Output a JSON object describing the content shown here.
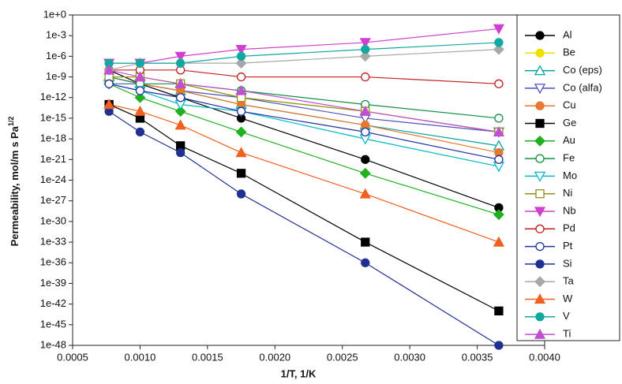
{
  "chart_data": {
    "type": "line",
    "y_label": "Permeability, mol/m s Pa",
    "y_label_sup": "1/2",
    "x_label": "1/T, 1/K",
    "log_y": true,
    "xlim": [
      0.0005,
      0.004
    ],
    "xticks": [
      0.0005,
      {
        "value": 0.001,
        "label": "0.0010"
      },
      0.0015,
      {
        "value": 0.002,
        "label": "0.0020"
      },
      0.0025,
      {
        "value": 0.003,
        "label": "0.0030"
      },
      0.0035,
      {
        "value": 0.004,
        "label": "0.0040"
      }
    ],
    "ylim": [
      1e-48,
      1
    ],
    "yticks": [
      {
        "value": 1,
        "label": "1e+0"
      },
      {
        "value": 0.001,
        "label": "1e-3"
      },
      {
        "value": 1e-06,
        "label": "1e-6"
      },
      {
        "value": 1e-09,
        "label": "1e-9"
      },
      {
        "value": 1e-12,
        "label": "1e-12"
      },
      {
        "value": 1e-15,
        "label": "1e-15"
      },
      {
        "value": 1e-18,
        "label": "1e-18"
      },
      {
        "value": 1e-21,
        "label": "1e-21"
      },
      {
        "value": 1e-24,
        "label": "1e-24"
      },
      {
        "value": 1e-27,
        "label": "1e-27"
      },
      {
        "value": 1e-30,
        "label": "1e-30"
      },
      {
        "value": 1e-33,
        "label": "1e-33"
      },
      {
        "value": 1e-36,
        "label": "1e-36"
      },
      {
        "value": 1e-39,
        "label": "1e-39"
      },
      {
        "value": 1e-42,
        "label": "1e-42"
      },
      {
        "value": 1e-45,
        "label": "1e-45"
      },
      {
        "value": 1e-48,
        "label": "1e-48"
      }
    ],
    "x": [
      0.00077,
      0.001,
      0.0013,
      0.00175,
      0.00267,
      0.00366
    ],
    "legend": "right",
    "series": [
      {
        "name": "Al",
        "color": "#000000",
        "marker": "circle",
        "filled": true,
        "values": [
          1e-08,
          1e-10,
          1e-12,
          1e-15,
          1e-21,
          1e-28
        ]
      },
      {
        "name": "Be",
        "color": "#f0e000",
        "marker": "circle",
        "filled": true,
        "values": [
          1e-09,
          1e-09,
          1e-10,
          1e-12,
          1e-14,
          1e-17
        ]
      },
      {
        "name": "Co (eps)",
        "color": "#00a0a0",
        "marker": "triangle",
        "filled": false,
        "values": [
          1e-09,
          1e-10,
          1e-11,
          1e-13,
          1e-16,
          1e-19
        ]
      },
      {
        "name": "Co (alfa)",
        "color": "#5050c0",
        "marker": "triangle-down",
        "filled": false,
        "values": [
          1e-10,
          1e-10,
          1e-11,
          1e-12,
          1e-15,
          1e-17
        ]
      },
      {
        "name": "Cu",
        "color": "#e87830",
        "marker": "circle",
        "filled": true,
        "values": [
          1e-09,
          1e-10,
          1e-11,
          1e-13,
          1e-16,
          1e-20
        ]
      },
      {
        "name": "Ge",
        "color": "#000000",
        "marker": "square",
        "filled": true,
        "values": [
          1e-13,
          1e-15,
          1e-19,
          1e-23,
          1e-33,
          1e-43
        ]
      },
      {
        "name": "Au",
        "color": "#20b020",
        "marker": "diamond",
        "filled": true,
        "values": [
          1e-10,
          1e-12,
          1e-14,
          1e-17,
          1e-23,
          1e-29
        ]
      },
      {
        "name": "Fe",
        "color": "#109040",
        "marker": "circle-dot",
        "filled": false,
        "values": [
          1e-09,
          1e-10,
          1e-10,
          1e-11,
          1e-13,
          1e-15
        ]
      },
      {
        "name": "Mo",
        "color": "#00b8c8",
        "marker": "triangle-down",
        "filled": false,
        "values": [
          1e-10,
          1e-11,
          1e-13,
          1e-14,
          1e-18,
          1e-22
        ]
      },
      {
        "name": "Ni",
        "color": "#909010",
        "marker": "square",
        "filled": false,
        "values": [
          1e-09,
          1e-09,
          1e-10,
          1e-12,
          1e-14,
          1e-17
        ]
      },
      {
        "name": "Nb",
        "color": "#d040d0",
        "marker": "triangle-down",
        "filled": true,
        "values": [
          1e-07,
          1e-07,
          1e-06,
          1e-05,
          0.0001,
          0.01
        ]
      },
      {
        "name": "Pd",
        "color": "#c02020",
        "marker": "circle-dot",
        "filled": false,
        "values": [
          1e-08,
          1e-08,
          1e-08,
          1e-09,
          1e-09,
          1e-10
        ]
      },
      {
        "name": "Pt",
        "color": "#2030a0",
        "marker": "circle-dot",
        "filled": false,
        "values": [
          1e-10,
          1e-11,
          1e-12,
          1e-14,
          1e-17,
          1e-21
        ]
      },
      {
        "name": "Si",
        "color": "#203090",
        "marker": "circle",
        "filled": true,
        "values": [
          1e-14,
          1e-17,
          1e-20,
          1e-26,
          1e-36,
          1e-48
        ]
      },
      {
        "name": "Ta",
        "color": "#a8a8a8",
        "marker": "diamond",
        "filled": true,
        "values": [
          1e-08,
          1e-07,
          1e-07,
          1e-07,
          1e-06,
          1e-05
        ]
      },
      {
        "name": "W",
        "color": "#f06020",
        "marker": "triangle",
        "filled": true,
        "values": [
          1e-13,
          1e-14,
          1e-16,
          1e-20,
          1e-26,
          1e-33
        ]
      },
      {
        "name": "V",
        "color": "#10a8a0",
        "marker": "circle",
        "filled": true,
        "values": [
          1e-07,
          1e-07,
          1e-07,
          1e-06,
          1e-05,
          0.0001
        ]
      },
      {
        "name": "Ti",
        "color": "#c050d0",
        "marker": "triangle",
        "filled": true,
        "values": [
          1e-08,
          1e-09,
          1e-10,
          1e-11,
          1e-14,
          1e-17
        ]
      }
    ]
  }
}
